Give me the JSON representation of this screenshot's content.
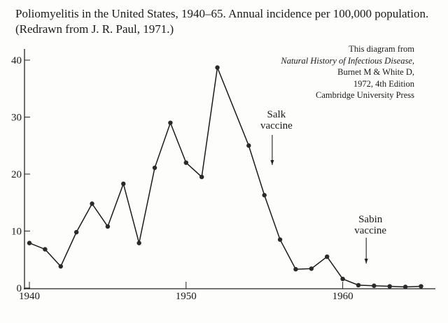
{
  "chart_data": {
    "type": "line",
    "title": "Poliomyelitis in the United States, 1940–65. Annual incidence per 100,000 population. (Redrawn from J. R. Paul, 1971.)",
    "xlabel": "",
    "ylabel": "",
    "xlim": [
      1940,
      1965
    ],
    "ylim": [
      0,
      40
    ],
    "x_ticks": [
      "1940",
      "1950",
      "1960"
    ],
    "y_ticks": [
      "0",
      "10",
      "20",
      "30",
      "40"
    ],
    "grid": false,
    "x": [
      1940,
      1941,
      1942,
      1943,
      1944,
      1945,
      1946,
      1947,
      1948,
      1949,
      1950,
      1951,
      1952,
      1954,
      1955,
      1956,
      1957,
      1958,
      1959,
      1960,
      1961,
      1962,
      1963,
      1964,
      1965
    ],
    "values": [
      7.9,
      6.8,
      3.8,
      9.8,
      14.8,
      10.8,
      18.3,
      7.9,
      21.1,
      29.0,
      22.0,
      19.5,
      38.7,
      25.0,
      16.3,
      8.5,
      3.3,
      3.4,
      5.5,
      1.6,
      0.5,
      0.4,
      0.3,
      0.2,
      0.3
    ],
    "annotations": [
      {
        "text_lines": [
          "Salk",
          "vaccine"
        ],
        "x": 1955.5
      },
      {
        "text_lines": [
          "Sabin",
          "vaccine"
        ],
        "x": 1961.5
      }
    ],
    "credit": {
      "line1": "This diagram from",
      "line2": "Natural History of Infectious Disease,",
      "line3": "Burnet M & White D,",
      "line4": "1972, 4th Edition",
      "line5": "Cambridge University Press"
    }
  }
}
